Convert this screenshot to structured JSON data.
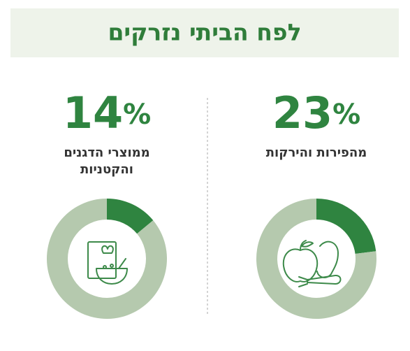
{
  "header": {
    "title": "לפח הביתי נזרקים"
  },
  "chart_data": [
    {
      "type": "pie",
      "label": [
        "מהפירות והירקות"
      ],
      "values": [
        23,
        77
      ],
      "value_labels": [
        "23%",
        null
      ],
      "colors": [
        "#2f8440",
        "#b5c9ae"
      ]
    },
    {
      "type": "pie",
      "label": [
        "ממוצרי הדגנים",
        "והקטניות"
      ],
      "values": [
        14,
        86
      ],
      "value_labels": [
        "14%",
        null
      ],
      "colors": [
        "#2f8440",
        "#b5c9ae"
      ]
    }
  ]
}
